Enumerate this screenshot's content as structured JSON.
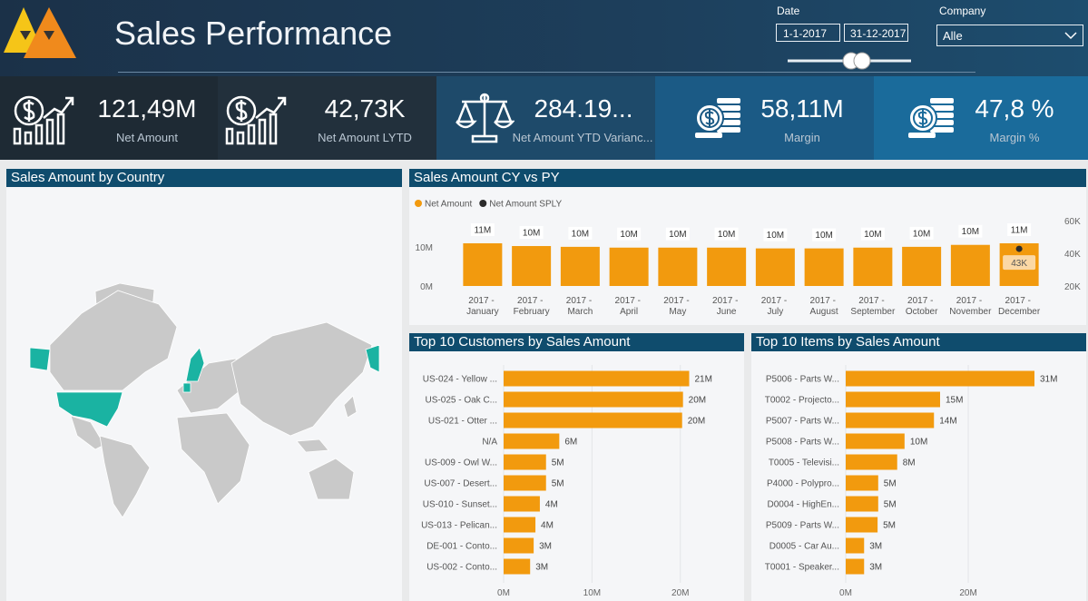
{
  "header": {
    "title": "Sales Performance",
    "date_label": "Date",
    "date_start": "1-1-2017",
    "date_end": "31-12-2017",
    "company_label": "Company",
    "company_value": "Alle"
  },
  "kpis": [
    {
      "value": "121,49M",
      "label": "Net Amount"
    },
    {
      "value": "42,73K",
      "label": "Net Amount LYTD"
    },
    {
      "value": "284.19...",
      "label": "Net Amount YTD Varianc..."
    },
    {
      "value": "58,11M",
      "label": "Margin"
    },
    {
      "value": "47,8 %",
      "label": "Margin %"
    }
  ],
  "map": {
    "title": "Sales Amount by Country"
  },
  "chart_data": [
    {
      "type": "combo",
      "title": "Sales Amount CY vs PY",
      "legend": "top-left",
      "categories": [
        "2017 - January",
        "2017 - February",
        "2017 - March",
        "2017 - April",
        "2017 - May",
        "2017 - June",
        "2017 - July",
        "2017 - August",
        "2017 - September",
        "2017 - October",
        "2017 - November",
        "2017 - December"
      ],
      "series": [
        {
          "name": "Net Amount",
          "type": "bar",
          "color": "#f29a0e",
          "values": [
            10900000,
            10200000,
            10000000,
            9800000,
            9800000,
            9800000,
            9600000,
            9600000,
            9800000,
            10000000,
            10500000,
            10900000
          ],
          "value_labels": [
            "11M",
            "10M",
            "10M",
            "10M",
            "10M",
            "10M",
            "10M",
            "10M",
            "10M",
            "10M",
            "10M",
            "11M"
          ]
        },
        {
          "name": "Net Amount SPLY",
          "type": "line",
          "axis": "y2",
          "color": "#2b2b2b",
          "values": [
            null,
            null,
            null,
            null,
            null,
            null,
            null,
            null,
            null,
            null,
            null,
            42730
          ],
          "value_labels": [
            null,
            null,
            null,
            null,
            null,
            null,
            null,
            null,
            null,
            null,
            null,
            "43K"
          ]
        }
      ],
      "ylim": [
        0,
        16700000
      ],
      "yticks": [
        {
          "value": 0,
          "label": "0M"
        },
        {
          "value": 10000000,
          "label": "10M"
        }
      ],
      "y2lim": [
        20000,
        60000
      ],
      "y2ticks": [
        {
          "value": 20000,
          "label": "20K"
        },
        {
          "value": 40000,
          "label": "40K"
        },
        {
          "value": 60000,
          "label": "60K"
        }
      ]
    },
    {
      "type": "hbar",
      "title": "Top 10 Customers by Sales Amount",
      "color": "#f29a0e",
      "categories": [
        "US-024 - Yellow ...",
        "US-025 - Oak C...",
        "US-021 - Otter ...",
        "N/A",
        "US-009 - Owl W...",
        "US-007 - Desert...",
        "US-010 - Sunset...",
        "US-013 - Pelican...",
        "DE-001 - Conto...",
        "US-002 - Conto..."
      ],
      "values": [
        21000000,
        20300000,
        20200000,
        6300000,
        4800000,
        4800000,
        4100000,
        3600000,
        3400000,
        3000000
      ],
      "value_labels": [
        "21M",
        "20M",
        "20M",
        "6M",
        "5M",
        "5M",
        "4M",
        "4M",
        "3M",
        "3M"
      ],
      "xlim": [
        0,
        26700000
      ],
      "xticks": [
        {
          "value": 0,
          "label": "0M"
        },
        {
          "value": 10000000,
          "label": "10M"
        },
        {
          "value": 20000000,
          "label": "20M"
        }
      ],
      "grid": true
    },
    {
      "type": "hbar",
      "title": "Top 10 Items by Sales Amount",
      "color": "#f29a0e",
      "categories": [
        "P5006 - Parts W...",
        "T0002 - Projecto...",
        "P5007 - Parts W...",
        "P5008 - Parts W...",
        "T0005 - Televisi...",
        "P4000 - Polypro...",
        "D0004 - HighEn...",
        "P5009 - Parts W...",
        "D0005 - Car Au...",
        "T0001 - Speaker..."
      ],
      "values": [
        30800000,
        15400000,
        14400000,
        9600000,
        8400000,
        5300000,
        5300000,
        5200000,
        3000000,
        3000000
      ],
      "value_labels": [
        "31M",
        "15M",
        "14M",
        "10M",
        "8M",
        "5M",
        "5M",
        "5M",
        "3M",
        "3M"
      ],
      "xlim": [
        0,
        38500000
      ],
      "xticks": [
        {
          "value": 0,
          "label": "0M"
        },
        {
          "value": 20000000,
          "label": "20M"
        }
      ],
      "grid": true
    }
  ]
}
